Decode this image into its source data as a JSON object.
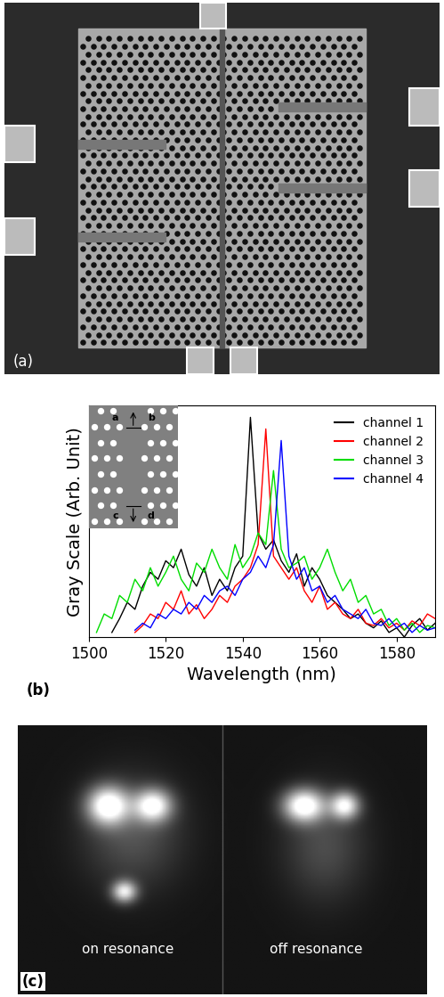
{
  "panel_labels": {
    "a": "(a)",
    "b": "(b)",
    "c": "(c)"
  },
  "chart_data": {
    "type": "line",
    "x_label": "Wavelength (nm)",
    "y_label": "Gray Scale (Arb. Unit)",
    "x": [
      1500,
      1502,
      1504,
      1506,
      1508,
      1510,
      1512,
      1514,
      1516,
      1518,
      1520,
      1522,
      1524,
      1526,
      1528,
      1530,
      1532,
      1534,
      1536,
      1538,
      1540,
      1542,
      1544,
      1546,
      1548,
      1550,
      1552,
      1554,
      1556,
      1558,
      1560,
      1562,
      1564,
      1566,
      1568,
      1570,
      1572,
      1574,
      1576,
      1578,
      1580,
      1582,
      1584,
      1586,
      1588,
      1590
    ],
    "series": [
      {
        "name": "channel 1",
        "color": "#000000",
        "values": [
          null,
          null,
          null,
          0.02,
          0.08,
          0.15,
          0.12,
          0.22,
          0.28,
          0.25,
          0.33,
          0.3,
          0.38,
          0.27,
          0.22,
          0.3,
          0.18,
          0.25,
          0.2,
          0.3,
          0.35,
          0.95,
          0.45,
          0.38,
          0.42,
          0.33,
          0.28,
          0.36,
          0.22,
          0.3,
          0.25,
          0.18,
          0.15,
          0.12,
          0.08,
          0.1,
          0.06,
          0.04,
          0.07,
          0.02,
          0.04,
          0.0,
          0.05,
          0.08,
          0.03,
          0.06
        ]
      },
      {
        "name": "channel 2",
        "color": "#ff0000",
        "values": [
          null,
          null,
          null,
          null,
          null,
          null,
          0.02,
          0.05,
          0.1,
          0.08,
          0.15,
          0.12,
          0.2,
          0.1,
          0.14,
          0.08,
          0.12,
          0.18,
          0.15,
          0.22,
          0.25,
          0.3,
          0.4,
          0.9,
          0.35,
          0.3,
          0.25,
          0.3,
          0.2,
          0.15,
          0.22,
          0.12,
          0.15,
          0.1,
          0.08,
          0.12,
          0.06,
          0.05,
          0.08,
          0.04,
          0.06,
          0.03,
          0.07,
          0.05,
          0.1,
          0.08
        ]
      },
      {
        "name": "channel 3",
        "color": "#00dd00",
        "values": [
          null,
          0.02,
          0.1,
          0.08,
          0.18,
          0.15,
          0.25,
          0.2,
          0.3,
          0.22,
          0.28,
          0.35,
          0.25,
          0.2,
          0.32,
          0.28,
          0.38,
          0.3,
          0.25,
          0.4,
          0.3,
          0.35,
          0.45,
          0.4,
          0.72,
          0.38,
          0.3,
          0.32,
          0.35,
          0.25,
          0.3,
          0.38,
          0.28,
          0.2,
          0.25,
          0.15,
          0.18,
          0.1,
          0.12,
          0.05,
          0.08,
          0.03,
          0.06,
          0.02,
          0.05,
          0.04
        ]
      },
      {
        "name": "channel 4",
        "color": "#0000ff",
        "values": [
          null,
          null,
          null,
          null,
          null,
          null,
          0.03,
          0.06,
          0.04,
          0.1,
          0.08,
          0.12,
          0.1,
          0.15,
          0.12,
          0.18,
          0.15,
          0.2,
          0.22,
          0.18,
          0.25,
          0.28,
          0.35,
          0.3,
          0.4,
          0.85,
          0.35,
          0.25,
          0.3,
          0.2,
          0.22,
          0.15,
          0.18,
          0.12,
          0.1,
          0.08,
          0.12,
          0.06,
          0.05,
          0.08,
          0.04,
          0.06,
          0.02,
          0.05,
          0.03,
          0.04
        ]
      }
    ],
    "xlim": [
      1500,
      1590
    ],
    "xticks": [
      1500,
      1520,
      1540,
      1560,
      1580
    ],
    "ylim": [
      0,
      1
    ],
    "yticks": [],
    "tick_labels": "x",
    "legend": "upper right",
    "annotations": [
      "a",
      "b",
      "c",
      "d"
    ]
  },
  "images": {
    "left_caption": "on resonance",
    "right_caption": "off resonance"
  }
}
